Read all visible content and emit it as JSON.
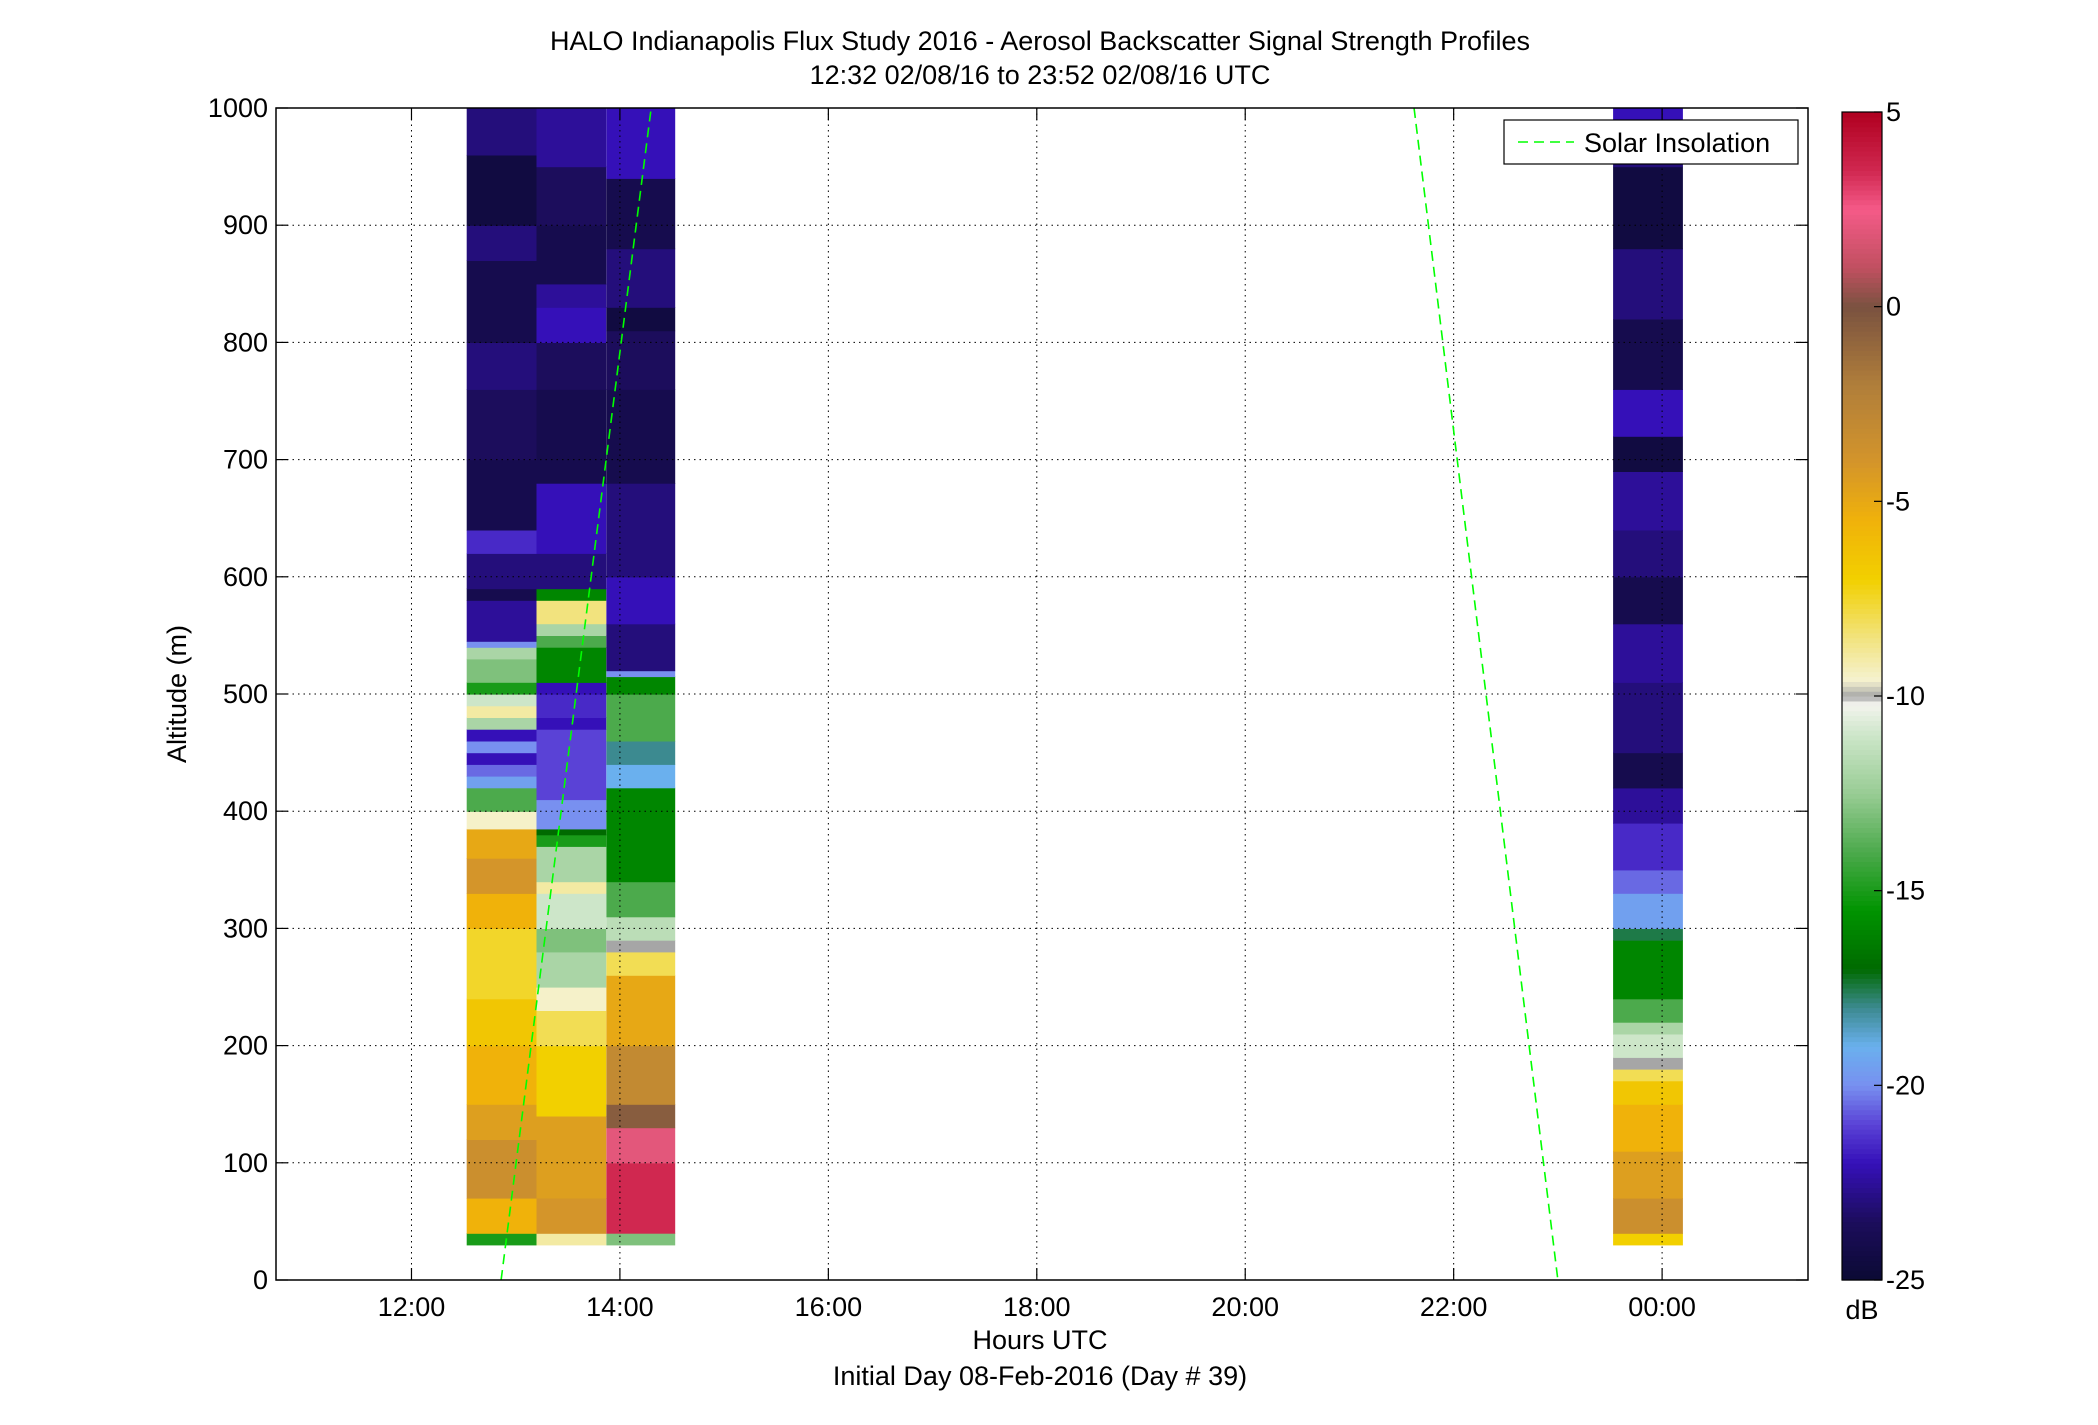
{
  "chart_data": {
    "type": "heatmap",
    "title": "HALO Indianapolis Flux Study 2016 - Aerosol Backscatter Signal Strength Profiles",
    "subtitle": "12:32 02/08/16 to 23:52 02/08/16  UTC",
    "xlabel": "Hours UTC",
    "xlabel2": "Initial Day 08-Feb-2016 (Day # 39)",
    "ylabel": "Altitude (m)",
    "x_unit": "hours UTC (24 = 00:00 next day)",
    "xlim": [
      10.7,
      25.4
    ],
    "ylim": [
      0,
      1000
    ],
    "x_ticks": [
      12,
      14,
      16,
      18,
      20,
      22,
      24
    ],
    "x_tick_labels": [
      "12:00",
      "14:00",
      "16:00",
      "18:00",
      "20:00",
      "22:00",
      "00:00"
    ],
    "y_ticks": [
      0,
      100,
      200,
      300,
      400,
      500,
      600,
      700,
      800,
      900,
      1000
    ],
    "y_tick_labels": [
      "0",
      "100",
      "200",
      "300",
      "400",
      "500",
      "600",
      "700",
      "800",
      "900",
      "1000"
    ],
    "grid": true,
    "legend": {
      "position": "top-right",
      "entries": [
        "Solar Insolation"
      ]
    },
    "colorbar": {
      "label": "dB",
      "range": [
        -25,
        5
      ],
      "ticks": [
        5,
        0,
        -5,
        -10,
        -15,
        -20,
        -25
      ],
      "tick_labels": [
        "5",
        "0",
        "-5",
        "-10",
        "-15",
        "-20",
        "-25"
      ]
    },
    "altitude_bin_m": 10,
    "profile_columns": [
      {
        "x_start": 12.53,
        "x_end": 13.2,
        "segments": [
          {
            "from": 30,
            "to": 40,
            "db": -15
          },
          {
            "from": 40,
            "to": 70,
            "db": -5.5
          },
          {
            "from": 70,
            "to": 120,
            "db": -3.5
          },
          {
            "from": 120,
            "to": 150,
            "db": -4.5
          },
          {
            "from": 150,
            "to": 200,
            "db": -5.5
          },
          {
            "from": 200,
            "to": 240,
            "db": -6.5
          },
          {
            "from": 240,
            "to": 300,
            "db": -7.5
          },
          {
            "from": 300,
            "to": 330,
            "db": -5.5
          },
          {
            "from": 330,
            "to": 360,
            "db": -4
          },
          {
            "from": 360,
            "to": 385,
            "db": -5
          },
          {
            "from": 385,
            "to": 400,
            "db": -9.5
          },
          {
            "from": 400,
            "to": 420,
            "db": -14
          },
          {
            "from": 420,
            "to": 430,
            "db": -19.5
          },
          {
            "from": 430,
            "to": 440,
            "db": -20.5
          },
          {
            "from": 440,
            "to": 450,
            "db": -22
          },
          {
            "from": 450,
            "to": 460,
            "db": -20
          },
          {
            "from": 460,
            "to": 470,
            "db": -22
          },
          {
            "from": 470,
            "to": 480,
            "db": -12
          },
          {
            "from": 480,
            "to": 490,
            "db": -9
          },
          {
            "from": 490,
            "to": 500,
            "db": -11
          },
          {
            "from": 500,
            "to": 510,
            "db": -15
          },
          {
            "from": 510,
            "to": 530,
            "db": -13
          },
          {
            "from": 530,
            "to": 540,
            "db": -12
          },
          {
            "from": 540,
            "to": 545,
            "db": -20
          },
          {
            "from": 545,
            "to": 580,
            "db": -22.5
          },
          {
            "from": 580,
            "to": 590,
            "db": -24
          },
          {
            "from": 590,
            "to": 620,
            "db": -23
          },
          {
            "from": 620,
            "to": 640,
            "db": -21.5
          },
          {
            "from": 640,
            "to": 700,
            "db": -24
          },
          {
            "from": 700,
            "to": 760,
            "db": -23.5
          },
          {
            "from": 760,
            "to": 800,
            "db": -23
          },
          {
            "from": 800,
            "to": 870,
            "db": -24
          },
          {
            "from": 870,
            "to": 900,
            "db": -23
          },
          {
            "from": 900,
            "to": 960,
            "db": -24.5
          },
          {
            "from": 960,
            "to": 1000,
            "db": -23
          }
        ]
      },
      {
        "x_start": 13.2,
        "x_end": 13.87,
        "segments": [
          {
            "from": 30,
            "to": 40,
            "db": -9
          },
          {
            "from": 40,
            "to": 70,
            "db": -4
          },
          {
            "from": 70,
            "to": 140,
            "db": -4.5
          },
          {
            "from": 140,
            "to": 200,
            "db": -7
          },
          {
            "from": 200,
            "to": 230,
            "db": -8
          },
          {
            "from": 230,
            "to": 250,
            "db": -9.5
          },
          {
            "from": 250,
            "to": 280,
            "db": -12
          },
          {
            "from": 280,
            "to": 300,
            "db": -13
          },
          {
            "from": 300,
            "to": 330,
            "db": -11
          },
          {
            "from": 330,
            "to": 340,
            "db": -9
          },
          {
            "from": 340,
            "to": 370,
            "db": -12
          },
          {
            "from": 370,
            "to": 380,
            "db": -15
          },
          {
            "from": 380,
            "to": 385,
            "db": -17
          },
          {
            "from": 385,
            "to": 410,
            "db": -20
          },
          {
            "from": 410,
            "to": 420,
            "db": -21
          },
          {
            "from": 420,
            "to": 470,
            "db": -21
          },
          {
            "from": 470,
            "to": 480,
            "db": -22
          },
          {
            "from": 480,
            "to": 500,
            "db": -21.5
          },
          {
            "from": 500,
            "to": 510,
            "db": -22
          },
          {
            "from": 510,
            "to": 540,
            "db": -16
          },
          {
            "from": 540,
            "to": 550,
            "db": -14
          },
          {
            "from": 550,
            "to": 560,
            "db": -12
          },
          {
            "from": 560,
            "to": 580,
            "db": -8.5
          },
          {
            "from": 580,
            "to": 590,
            "db": -16
          },
          {
            "from": 590,
            "to": 620,
            "db": -23
          },
          {
            "from": 620,
            "to": 680,
            "db": -22
          },
          {
            "from": 680,
            "to": 760,
            "db": -24
          },
          {
            "from": 760,
            "to": 800,
            "db": -23.5
          },
          {
            "from": 800,
            "to": 830,
            "db": -22
          },
          {
            "from": 830,
            "to": 850,
            "db": -22.5
          },
          {
            "from": 850,
            "to": 900,
            "db": -24
          },
          {
            "from": 900,
            "to": 950,
            "db": -23.5
          },
          {
            "from": 950,
            "to": 1000,
            "db": -22.5
          }
        ]
      },
      {
        "x_start": 13.87,
        "x_end": 14.53,
        "segments": [
          {
            "from": 30,
            "to": 40,
            "db": -13
          },
          {
            "from": 40,
            "to": 100,
            "db": 3.5
          },
          {
            "from": 100,
            "to": 130,
            "db": 2
          },
          {
            "from": 130,
            "to": 150,
            "db": -0.5
          },
          {
            "from": 150,
            "to": 200,
            "db": -3
          },
          {
            "from": 200,
            "to": 260,
            "db": -5
          },
          {
            "from": 260,
            "to": 280,
            "db": -8
          },
          {
            "from": 280,
            "to": 290,
            "db": -10
          },
          {
            "from": 290,
            "to": 310,
            "db": -11.5
          },
          {
            "from": 310,
            "to": 340,
            "db": -14
          },
          {
            "from": 340,
            "to": 420,
            "db": -16
          },
          {
            "from": 420,
            "to": 440,
            "db": -19
          },
          {
            "from": 440,
            "to": 460,
            "db": -18
          },
          {
            "from": 460,
            "to": 500,
            "db": -14
          },
          {
            "from": 500,
            "to": 515,
            "db": -16
          },
          {
            "from": 515,
            "to": 520,
            "db": -20
          },
          {
            "from": 520,
            "to": 560,
            "db": -23
          },
          {
            "from": 560,
            "to": 600,
            "db": -22
          },
          {
            "from": 600,
            "to": 680,
            "db": -23
          },
          {
            "from": 680,
            "to": 760,
            "db": -24
          },
          {
            "from": 760,
            "to": 810,
            "db": -23.5
          },
          {
            "from": 810,
            "to": 830,
            "db": -24.5
          },
          {
            "from": 830,
            "to": 880,
            "db": -23
          },
          {
            "from": 880,
            "to": 940,
            "db": -24
          },
          {
            "from": 940,
            "to": 1000,
            "db": -22
          }
        ]
      },
      {
        "x_start": 23.53,
        "x_end": 24.2,
        "segments": [
          {
            "from": 30,
            "to": 40,
            "db": -7
          },
          {
            "from": 40,
            "to": 70,
            "db": -3.5
          },
          {
            "from": 70,
            "to": 110,
            "db": -4.5
          },
          {
            "from": 110,
            "to": 150,
            "db": -5.5
          },
          {
            "from": 150,
            "to": 170,
            "db": -6.5
          },
          {
            "from": 170,
            "to": 180,
            "db": -8
          },
          {
            "from": 180,
            "to": 190,
            "db": -10
          },
          {
            "from": 190,
            "to": 210,
            "db": -11
          },
          {
            "from": 210,
            "to": 220,
            "db": -12
          },
          {
            "from": 220,
            "to": 240,
            "db": -14
          },
          {
            "from": 240,
            "to": 290,
            "db": -16
          },
          {
            "from": 290,
            "to": 300,
            "db": -17.5
          },
          {
            "from": 300,
            "to": 330,
            "db": -19.5
          },
          {
            "from": 330,
            "to": 350,
            "db": -20.5
          },
          {
            "from": 350,
            "to": 390,
            "db": -21.5
          },
          {
            "from": 390,
            "to": 420,
            "db": -22.5
          },
          {
            "from": 420,
            "to": 450,
            "db": -24
          },
          {
            "from": 450,
            "to": 510,
            "db": -23
          },
          {
            "from": 510,
            "to": 560,
            "db": -22.5
          },
          {
            "from": 560,
            "to": 600,
            "db": -24
          },
          {
            "from": 600,
            "to": 640,
            "db": -23
          },
          {
            "from": 640,
            "to": 690,
            "db": -22.5
          },
          {
            "from": 690,
            "to": 720,
            "db": -24.5
          },
          {
            "from": 720,
            "to": 760,
            "db": -22
          },
          {
            "from": 760,
            "to": 820,
            "db": -24
          },
          {
            "from": 820,
            "to": 880,
            "db": -23
          },
          {
            "from": 880,
            "to": 950,
            "db": -24.5
          },
          {
            "from": 950,
            "to": 990,
            "db": -23
          },
          {
            "from": 990,
            "to": 1000,
            "db": -22
          }
        ]
      }
    ],
    "series": [
      {
        "name": "Solar Insolation",
        "style": "dashed",
        "color": "#00ff00",
        "segments": [
          [
            {
              "x": 12.86,
              "y": 0
            },
            {
              "x": 14.3,
              "y": 1000
            }
          ],
          [
            {
              "x": 21.62,
              "y": 1000
            },
            {
              "x": 23.0,
              "y": 0
            }
          ]
        ]
      }
    ]
  },
  "colormap_stops": [
    {
      "db": -25,
      "color": "#0b0a33"
    },
    {
      "db": -23.5,
      "color": "#1c0d5c"
    },
    {
      "db": -22,
      "color": "#3510b8"
    },
    {
      "db": -21,
      "color": "#5a42d6"
    },
    {
      "db": -20,
      "color": "#7890f0"
    },
    {
      "db": -19,
      "color": "#6ab0ee"
    },
    {
      "db": -18,
      "color": "#3c8a90"
    },
    {
      "db": -17,
      "color": "#006a00"
    },
    {
      "db": -15.5,
      "color": "#009400"
    },
    {
      "db": -14,
      "color": "#4caa4c"
    },
    {
      "db": -12.5,
      "color": "#98cc94"
    },
    {
      "db": -11,
      "color": "#cde6c9"
    },
    {
      "db": -10.2,
      "color": "#f4f4ee"
    },
    {
      "db": -10,
      "color": "#a6a6a6"
    },
    {
      "db": -9.6,
      "color": "#f5f2d0"
    },
    {
      "db": -8.5,
      "color": "#f2e37e"
    },
    {
      "db": -7,
      "color": "#f2d000"
    },
    {
      "db": -5.5,
      "color": "#f0b20a"
    },
    {
      "db": -4,
      "color": "#d4952a"
    },
    {
      "db": -2,
      "color": "#b07e3a"
    },
    {
      "db": 0,
      "color": "#7a5240"
    },
    {
      "db": 1,
      "color": "#c05060"
    },
    {
      "db": 2.5,
      "color": "#f55a88"
    },
    {
      "db": 3.5,
      "color": "#d02850"
    },
    {
      "db": 5,
      "color": "#b00020"
    }
  ]
}
